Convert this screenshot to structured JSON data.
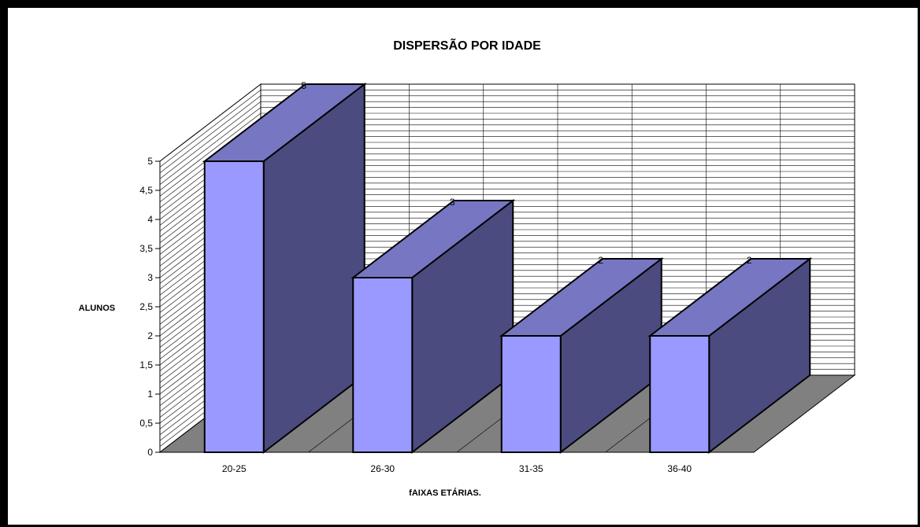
{
  "chart_data": {
    "type": "bar",
    "title": "DISPERSÃO POR IDADE",
    "xlabel": "fAIXAS ETÁRIAS.",
    "ylabel": "ALUNOS",
    "categories": [
      "20-25",
      "26-30",
      "31-35",
      "36-40"
    ],
    "values": [
      5,
      3,
      2,
      2
    ],
    "data_labels": [
      "5",
      "3",
      "2",
      "2"
    ],
    "ylim": [
      0,
      5
    ],
    "y_ticks": [
      "0",
      "0,5",
      "1",
      "1,5",
      "2",
      "2,5",
      "3",
      "3,5",
      "4",
      "4,5",
      "5"
    ],
    "grid": true,
    "legend": "none",
    "colors": {
      "bar_front": "#9999ff",
      "bar_top": "#7676c2",
      "bar_side": "#4b4b80",
      "floor": "#808080",
      "wall": "#ffffff",
      "outline": "#000000"
    }
  }
}
